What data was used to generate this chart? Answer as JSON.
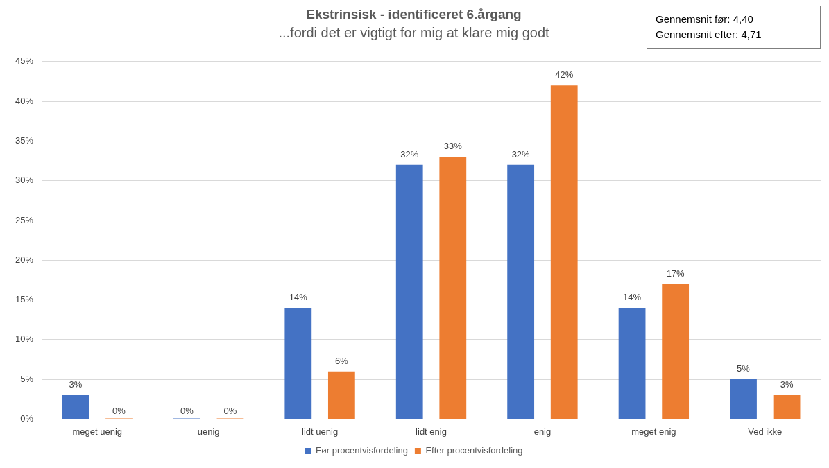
{
  "chart_data": {
    "type": "bar",
    "title": "Ekstrinsisk - identificeret 6.årgang",
    "subtitle": "...fordi det er vigtigt for mig at klare mig godt",
    "categories": [
      "meget uenig",
      "uenig",
      "lidt uenig",
      "lidt enig",
      "enig",
      "meget enig",
      "Ved ikke"
    ],
    "series": [
      {
        "name": "Før procentvisfordeling",
        "color": "#4472c4",
        "values": [
          3,
          0,
          14,
          32,
          32,
          14,
          5
        ],
        "value_labels": [
          "3%",
          "0%",
          "14%",
          "32%",
          "32%",
          "14%",
          "5%"
        ]
      },
      {
        "name": "Efter procentvisfordeling",
        "color": "#ed7d31",
        "values": [
          0,
          0,
          6,
          33,
          42,
          17,
          3
        ],
        "value_labels": [
          "0%",
          "0%",
          "6%",
          "33%",
          "42%",
          "17%",
          "3%"
        ]
      }
    ],
    "ylim": [
      0,
      45
    ],
    "yticks": [
      {
        "value": 0,
        "label": "0%"
      },
      {
        "value": 5,
        "label": "5%"
      },
      {
        "value": 10,
        "label": "10%"
      },
      {
        "value": 15,
        "label": "15%"
      },
      {
        "value": 20,
        "label": "20%"
      },
      {
        "value": 25,
        "label": "25%"
      },
      {
        "value": 30,
        "label": "30%"
      },
      {
        "value": 35,
        "label": "35%"
      },
      {
        "value": 40,
        "label": "40%"
      },
      {
        "value": 45,
        "label": "45%"
      }
    ],
    "grid": "y",
    "legend": "bottom",
    "annotations": [
      "Gennemsnit før: 4,40",
      "Gennemsnit efter: 4,71"
    ]
  }
}
